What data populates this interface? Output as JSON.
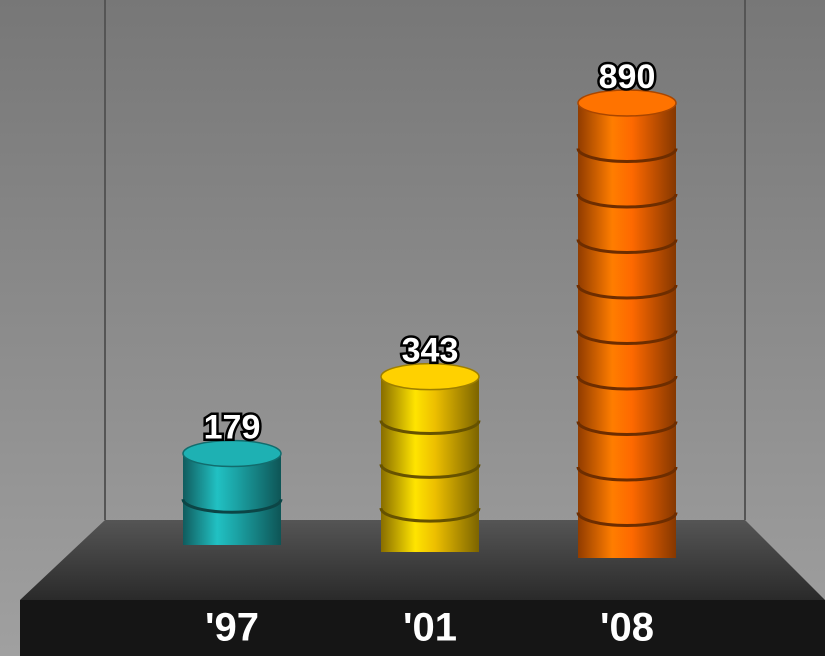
{
  "chart_data": {
    "type": "bar",
    "categories": [
      "'97",
      "'01",
      "'08"
    ],
    "values": [
      179,
      343,
      890
    ],
    "colors": [
      "#1a9a9c",
      "#e2b600",
      "#f26400"
    ]
  }
}
